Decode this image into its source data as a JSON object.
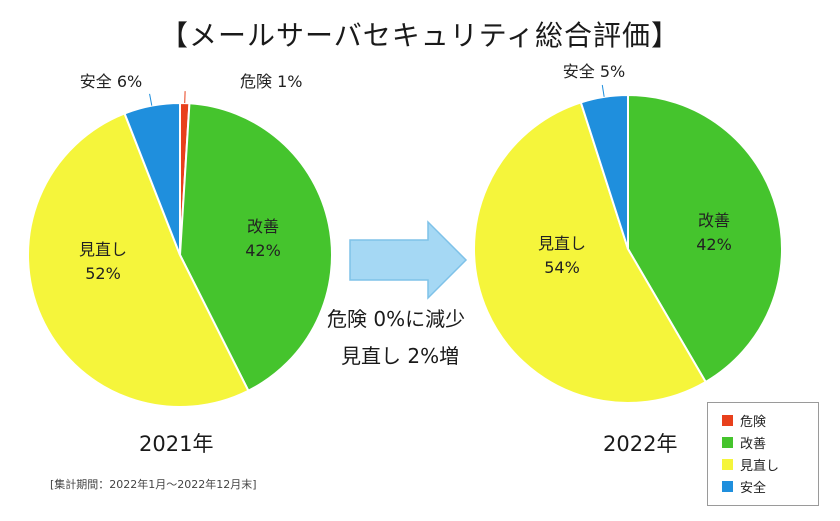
{
  "title": "【メールサーバセキュリティ総合評価】",
  "transition_text": [
    "危険 0%に減少",
    "見直し 2%増"
  ],
  "note": "[集計期間：2022年1月～2022年12月末]",
  "colors": {
    "danger": "#e8401c",
    "improve": "#45c42d",
    "review": "#f5f53b",
    "safe": "#1f8fdd",
    "arrow_fill": "#a5d8f4",
    "arrow_stroke": "#7fc2e8"
  },
  "legend": [
    {
      "label": "危険",
      "color": "#e8401c"
    },
    {
      "label": "改善",
      "color": "#45c42d"
    },
    {
      "label": "見直し",
      "color": "#f5f53b"
    },
    {
      "label": "安全",
      "color": "#1f8fdd"
    }
  ],
  "chart_data": [
    {
      "type": "pie",
      "title": "2021年",
      "slices": [
        {
          "label": "危険",
          "value": 1,
          "display": "危険 1%",
          "color": "#e8401c"
        },
        {
          "label": "改善",
          "value": 42,
          "display": "改善\n42%",
          "color": "#45c42d"
        },
        {
          "label": "見直し",
          "value": 52,
          "display": "見直し\n52%",
          "color": "#f5f53b"
        },
        {
          "label": "安全",
          "value": 6,
          "display": "安全 6%",
          "color": "#1f8fdd"
        }
      ]
    },
    {
      "type": "pie",
      "title": "2022年",
      "slices": [
        {
          "label": "危険",
          "value": 0,
          "display": "",
          "color": "#e8401c"
        },
        {
          "label": "改善",
          "value": 42,
          "display": "改善\n42%",
          "color": "#45c42d"
        },
        {
          "label": "見直し",
          "value": 54,
          "display": "見直し\n54%",
          "color": "#f5f53b"
        },
        {
          "label": "安全",
          "value": 5,
          "display": "安全 5%",
          "color": "#1f8fdd"
        }
      ]
    }
  ]
}
